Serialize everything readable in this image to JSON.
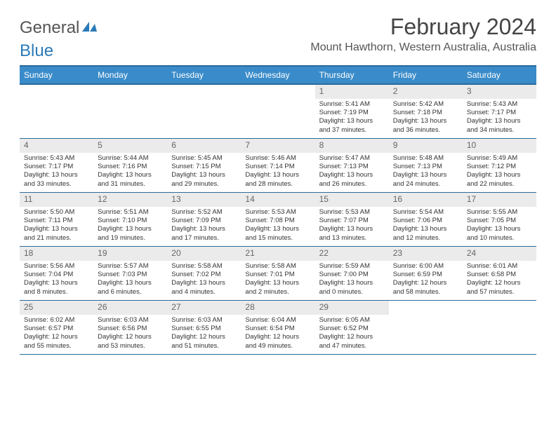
{
  "logo": {
    "text1": "General",
    "text2": "Blue"
  },
  "title": "February 2024",
  "location": "Mount Hawthorn, Western Australia, Australia",
  "colors": {
    "header_bg": "#3a8bc9",
    "header_border": "#2a6a9a",
    "daynum_bg": "#ebebeb",
    "text": "#333333"
  },
  "day_names": [
    "Sunday",
    "Monday",
    "Tuesday",
    "Wednesday",
    "Thursday",
    "Friday",
    "Saturday"
  ],
  "weeks": [
    [
      {
        "n": "",
        "sr": "",
        "ss": "",
        "dl": ""
      },
      {
        "n": "",
        "sr": "",
        "ss": "",
        "dl": ""
      },
      {
        "n": "",
        "sr": "",
        "ss": "",
        "dl": ""
      },
      {
        "n": "",
        "sr": "",
        "ss": "",
        "dl": ""
      },
      {
        "n": "1",
        "sr": "Sunrise: 5:41 AM",
        "ss": "Sunset: 7:19 PM",
        "dl": "Daylight: 13 hours and 37 minutes."
      },
      {
        "n": "2",
        "sr": "Sunrise: 5:42 AM",
        "ss": "Sunset: 7:18 PM",
        "dl": "Daylight: 13 hours and 36 minutes."
      },
      {
        "n": "3",
        "sr": "Sunrise: 5:43 AM",
        "ss": "Sunset: 7:17 PM",
        "dl": "Daylight: 13 hours and 34 minutes."
      }
    ],
    [
      {
        "n": "4",
        "sr": "Sunrise: 5:43 AM",
        "ss": "Sunset: 7:17 PM",
        "dl": "Daylight: 13 hours and 33 minutes."
      },
      {
        "n": "5",
        "sr": "Sunrise: 5:44 AM",
        "ss": "Sunset: 7:16 PM",
        "dl": "Daylight: 13 hours and 31 minutes."
      },
      {
        "n": "6",
        "sr": "Sunrise: 5:45 AM",
        "ss": "Sunset: 7:15 PM",
        "dl": "Daylight: 13 hours and 29 minutes."
      },
      {
        "n": "7",
        "sr": "Sunrise: 5:46 AM",
        "ss": "Sunset: 7:14 PM",
        "dl": "Daylight: 13 hours and 28 minutes."
      },
      {
        "n": "8",
        "sr": "Sunrise: 5:47 AM",
        "ss": "Sunset: 7:13 PM",
        "dl": "Daylight: 13 hours and 26 minutes."
      },
      {
        "n": "9",
        "sr": "Sunrise: 5:48 AM",
        "ss": "Sunset: 7:13 PM",
        "dl": "Daylight: 13 hours and 24 minutes."
      },
      {
        "n": "10",
        "sr": "Sunrise: 5:49 AM",
        "ss": "Sunset: 7:12 PM",
        "dl": "Daylight: 13 hours and 22 minutes."
      }
    ],
    [
      {
        "n": "11",
        "sr": "Sunrise: 5:50 AM",
        "ss": "Sunset: 7:11 PM",
        "dl": "Daylight: 13 hours and 21 minutes."
      },
      {
        "n": "12",
        "sr": "Sunrise: 5:51 AM",
        "ss": "Sunset: 7:10 PM",
        "dl": "Daylight: 13 hours and 19 minutes."
      },
      {
        "n": "13",
        "sr": "Sunrise: 5:52 AM",
        "ss": "Sunset: 7:09 PM",
        "dl": "Daylight: 13 hours and 17 minutes."
      },
      {
        "n": "14",
        "sr": "Sunrise: 5:53 AM",
        "ss": "Sunset: 7:08 PM",
        "dl": "Daylight: 13 hours and 15 minutes."
      },
      {
        "n": "15",
        "sr": "Sunrise: 5:53 AM",
        "ss": "Sunset: 7:07 PM",
        "dl": "Daylight: 13 hours and 13 minutes."
      },
      {
        "n": "16",
        "sr": "Sunrise: 5:54 AM",
        "ss": "Sunset: 7:06 PM",
        "dl": "Daylight: 13 hours and 12 minutes."
      },
      {
        "n": "17",
        "sr": "Sunrise: 5:55 AM",
        "ss": "Sunset: 7:05 PM",
        "dl": "Daylight: 13 hours and 10 minutes."
      }
    ],
    [
      {
        "n": "18",
        "sr": "Sunrise: 5:56 AM",
        "ss": "Sunset: 7:04 PM",
        "dl": "Daylight: 13 hours and 8 minutes."
      },
      {
        "n": "19",
        "sr": "Sunrise: 5:57 AM",
        "ss": "Sunset: 7:03 PM",
        "dl": "Daylight: 13 hours and 6 minutes."
      },
      {
        "n": "20",
        "sr": "Sunrise: 5:58 AM",
        "ss": "Sunset: 7:02 PM",
        "dl": "Daylight: 13 hours and 4 minutes."
      },
      {
        "n": "21",
        "sr": "Sunrise: 5:58 AM",
        "ss": "Sunset: 7:01 PM",
        "dl": "Daylight: 13 hours and 2 minutes."
      },
      {
        "n": "22",
        "sr": "Sunrise: 5:59 AM",
        "ss": "Sunset: 7:00 PM",
        "dl": "Daylight: 13 hours and 0 minutes."
      },
      {
        "n": "23",
        "sr": "Sunrise: 6:00 AM",
        "ss": "Sunset: 6:59 PM",
        "dl": "Daylight: 12 hours and 58 minutes."
      },
      {
        "n": "24",
        "sr": "Sunrise: 6:01 AM",
        "ss": "Sunset: 6:58 PM",
        "dl": "Daylight: 12 hours and 57 minutes."
      }
    ],
    [
      {
        "n": "25",
        "sr": "Sunrise: 6:02 AM",
        "ss": "Sunset: 6:57 PM",
        "dl": "Daylight: 12 hours and 55 minutes."
      },
      {
        "n": "26",
        "sr": "Sunrise: 6:03 AM",
        "ss": "Sunset: 6:56 PM",
        "dl": "Daylight: 12 hours and 53 minutes."
      },
      {
        "n": "27",
        "sr": "Sunrise: 6:03 AM",
        "ss": "Sunset: 6:55 PM",
        "dl": "Daylight: 12 hours and 51 minutes."
      },
      {
        "n": "28",
        "sr": "Sunrise: 6:04 AM",
        "ss": "Sunset: 6:54 PM",
        "dl": "Daylight: 12 hours and 49 minutes."
      },
      {
        "n": "29",
        "sr": "Sunrise: 6:05 AM",
        "ss": "Sunset: 6:52 PM",
        "dl": "Daylight: 12 hours and 47 minutes."
      },
      {
        "n": "",
        "sr": "",
        "ss": "",
        "dl": ""
      },
      {
        "n": "",
        "sr": "",
        "ss": "",
        "dl": ""
      }
    ]
  ]
}
